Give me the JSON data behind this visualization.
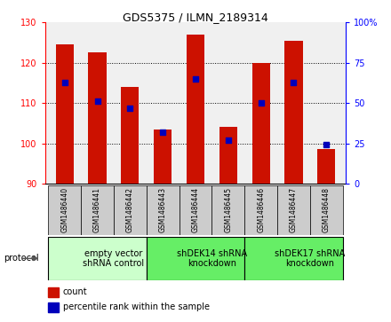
{
  "title": "GDS5375 / ILMN_2189314",
  "samples": [
    "GSM1486440",
    "GSM1486441",
    "GSM1486442",
    "GSM1486443",
    "GSM1486444",
    "GSM1486445",
    "GSM1486446",
    "GSM1486447",
    "GSM1486448"
  ],
  "count_values": [
    124.5,
    122.5,
    114.0,
    103.5,
    127.0,
    104.0,
    120.0,
    125.5,
    98.5
  ],
  "percentile_values": [
    63,
    51,
    47,
    32,
    65,
    27,
    50,
    63,
    24
  ],
  "ylim_left": [
    90,
    130
  ],
  "ylim_right": [
    0,
    100
  ],
  "yticks_left": [
    90,
    100,
    110,
    120,
    130
  ],
  "yticks_right": [
    0,
    25,
    50,
    75,
    100
  ],
  "bar_color": "#cc1100",
  "dot_color": "#0000bb",
  "bar_bottom": 90,
  "groups": [
    {
      "label": "empty vector\nshRNA control",
      "start": 0,
      "end": 3,
      "color": "#ccffcc"
    },
    {
      "label": "shDEK14 shRNA\nknockdown",
      "start": 3,
      "end": 6,
      "color": "#66ee66"
    },
    {
      "label": "shDEK17 shRNA\nknockdown",
      "start": 6,
      "end": 9,
      "color": "#66ee66"
    }
  ],
  "sample_box_color": "#cccccc",
  "legend_count_color": "#cc1100",
  "legend_dot_color": "#0000bb",
  "title_fontsize": 9,
  "axis_fontsize": 7,
  "sample_fontsize": 5.5,
  "group_fontsize": 7,
  "legend_fontsize": 7,
  "protocol_fontsize": 7
}
